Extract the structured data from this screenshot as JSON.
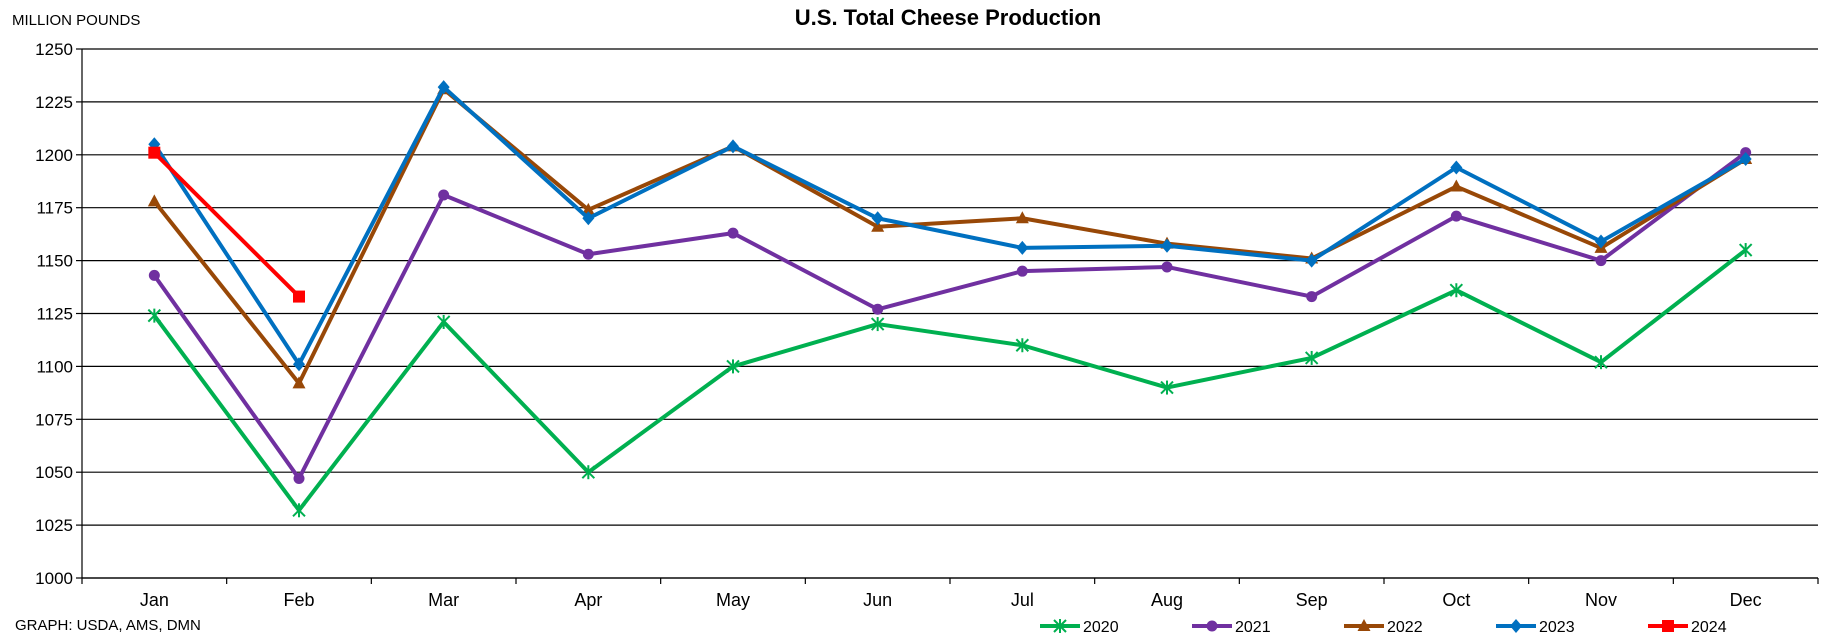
{
  "chart_data": {
    "type": "line",
    "title": "U.S. Total Cheese Production",
    "ylabel": "MILLION POUNDS",
    "xlabel": "",
    "source": "GRAPH: USDA, AMS, DMN",
    "categories": [
      "Jan",
      "Feb",
      "Mar",
      "Apr",
      "May",
      "Jun",
      "Jul",
      "Aug",
      "Sep",
      "Oct",
      "Nov",
      "Dec"
    ],
    "ylim": [
      1000,
      1250
    ],
    "yticks": [
      1000,
      1025,
      1050,
      1075,
      1100,
      1125,
      1150,
      1175,
      1200,
      1225,
      1250
    ],
    "grid": true,
    "legend_position": "bottom-right",
    "series": [
      {
        "name": "2020",
        "color": "#00b050",
        "marker": "star",
        "values": [
          1124,
          1032,
          1121,
          1050,
          1100,
          1120,
          1110,
          1090,
          1104,
          1136,
          1102,
          1155
        ]
      },
      {
        "name": "2021",
        "color": "#7030a0",
        "marker": "circle",
        "values": [
          1143,
          1047,
          1181,
          1153,
          1163,
          1127,
          1145,
          1147,
          1133,
          1171,
          1150,
          1201
        ]
      },
      {
        "name": "2022",
        "color": "#984807",
        "marker": "triangle",
        "values": [
          1178,
          1092,
          1231,
          1174,
          1204,
          1166,
          1170,
          1158,
          1151,
          1185,
          1156,
          1198
        ]
      },
      {
        "name": "2023",
        "color": "#0070c0",
        "marker": "diamond",
        "values": [
          1205,
          1101,
          1232,
          1170,
          1204,
          1170,
          1156,
          1157,
          1150,
          1194,
          1159,
          1198
        ]
      },
      {
        "name": "2024",
        "color": "#ff0000",
        "marker": "square",
        "values": [
          1201,
          1133,
          null,
          null,
          null,
          null,
          null,
          null,
          null,
          null,
          null,
          null
        ]
      }
    ]
  }
}
